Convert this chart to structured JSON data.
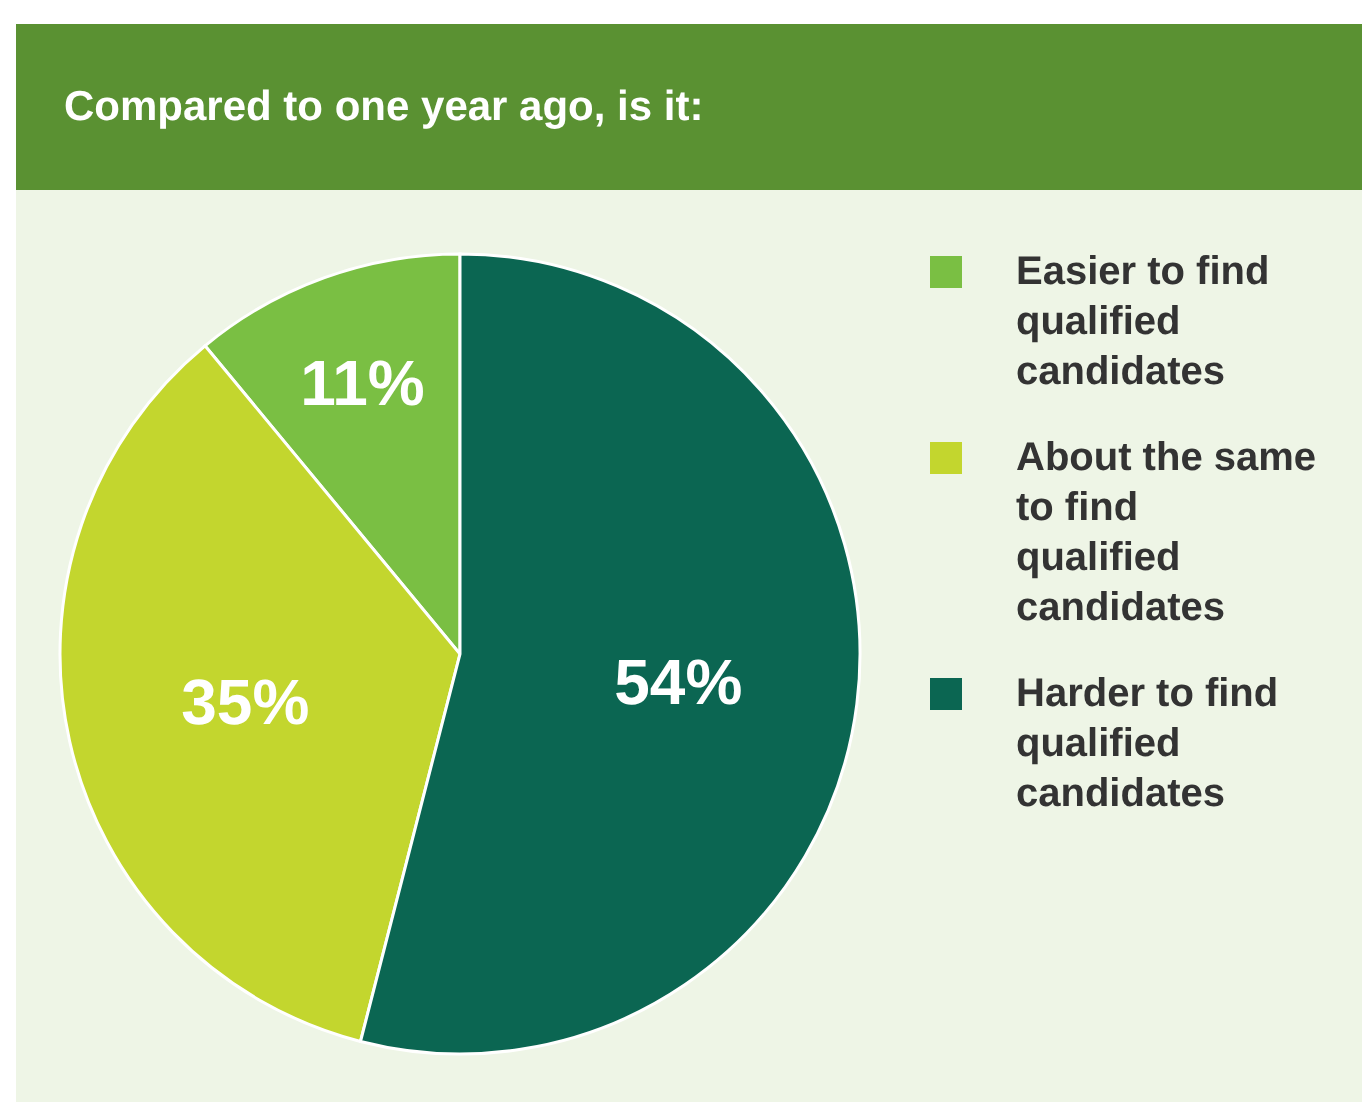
{
  "chart_data": {
    "type": "pie",
    "title": "Compared to one year ago, is it:",
    "categories": [
      "Easier to find qualified candidates",
      "About the same to find qualified candidates",
      "Harder to find qualified candidates"
    ],
    "values": [
      11,
      35,
      54
    ],
    "colors": [
      "#7abf43",
      "#c3d62e",
      "#0b6652"
    ],
    "value_labels": [
      "11%",
      "35%",
      "54%"
    ],
    "legend": "right"
  }
}
